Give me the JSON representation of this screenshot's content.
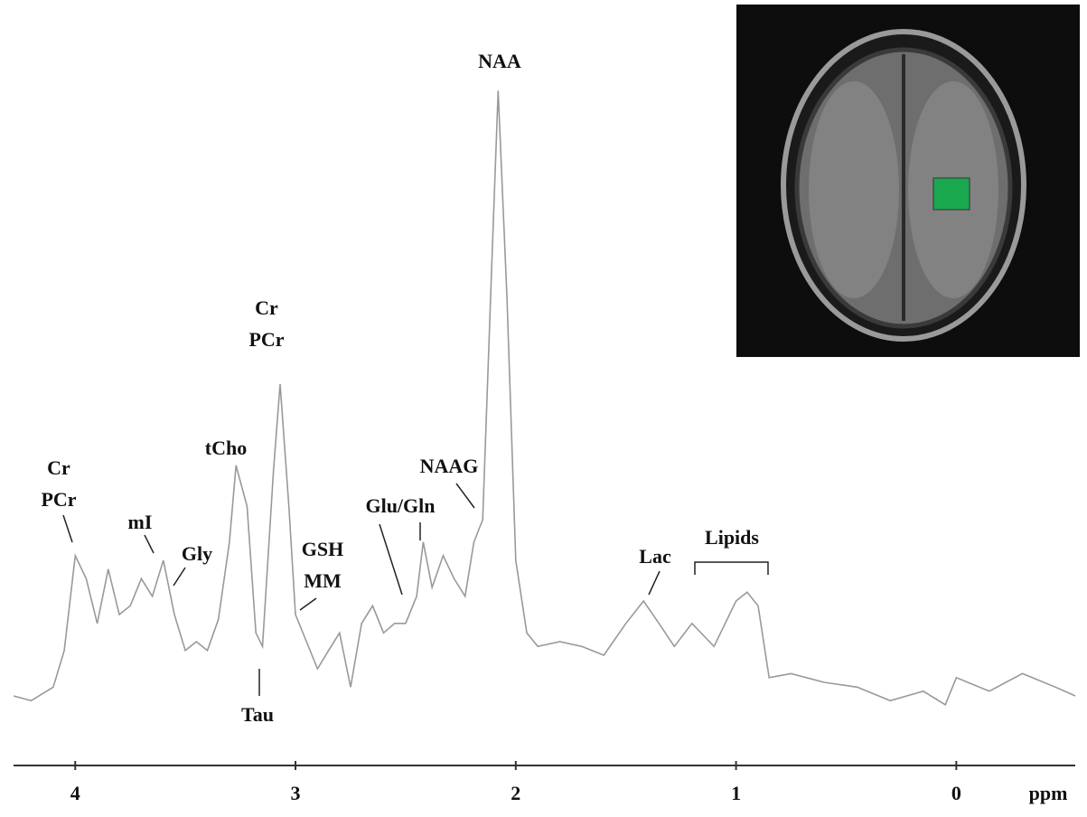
{
  "chart_data": {
    "type": "line",
    "x": [
      4.28,
      4.2,
      4.1,
      4.05,
      4.0,
      3.95,
      3.9,
      3.85,
      3.8,
      3.75,
      3.7,
      3.65,
      3.6,
      3.55,
      3.5,
      3.45,
      3.4,
      3.35,
      3.3,
      3.27,
      3.22,
      3.18,
      3.15,
      3.1,
      3.07,
      3.03,
      3.0,
      2.95,
      2.9,
      2.85,
      2.8,
      2.75,
      2.7,
      2.65,
      2.6,
      2.55,
      2.5,
      2.45,
      2.42,
      2.38,
      2.33,
      2.28,
      2.23,
      2.19,
      2.15,
      2.11,
      2.08,
      2.04,
      2.0,
      1.95,
      1.9,
      1.8,
      1.7,
      1.6,
      1.5,
      1.42,
      1.35,
      1.28,
      1.2,
      1.1,
      1.0,
      0.95,
      0.9,
      0.85,
      0.75,
      0.6,
      0.45,
      0.3,
      0.15,
      0.05,
      0.0,
      -0.15,
      -0.3,
      -0.45,
      -0.54
    ],
    "series": [
      {
        "color": "#999999",
        "values": [
          8,
          7.3,
          9.3,
          14.7,
          28.7,
          25.3,
          18.7,
          26.7,
          20,
          21.3,
          25.3,
          22.7,
          28,
          20,
          14.7,
          16,
          14.7,
          19.3,
          30.7,
          42,
          36,
          17.3,
          15.3,
          41.3,
          54,
          36,
          20,
          16,
          12,
          14.7,
          17.3,
          9.3,
          18.7,
          21.3,
          17.3,
          18.7,
          18.7,
          22.7,
          30.7,
          24,
          28.7,
          25.3,
          22.7,
          30.7,
          34,
          70.7,
          97.3,
          66.7,
          28,
          17.3,
          15.3,
          16,
          15.3,
          14,
          18.7,
          22,
          18.7,
          15.3,
          18.7,
          15.3,
          22,
          23.3,
          21.3,
          10.7,
          11.3,
          10,
          9.3,
          7.3,
          8.7,
          6.7,
          10.7,
          8.7,
          11.3,
          9.3,
          8
        ]
      }
    ],
    "xlim": [
      4.28,
      -0.54
    ],
    "xticks": [
      4,
      3,
      2,
      1,
      0
    ],
    "ylim": [
      0,
      100
    ],
    "x_label": "ppm",
    "annotations": [
      {
        "lines": [
          "Cr",
          "PCr"
        ]
      },
      {
        "lines": [
          "mI"
        ]
      },
      {
        "lines": [
          "Gly"
        ]
      },
      {
        "lines": [
          "tCho"
        ]
      },
      {
        "lines": [
          "Cr",
          "PCr"
        ]
      },
      {
        "lines": [
          "Tau"
        ]
      },
      {
        "lines": [
          "GSH",
          "MM"
        ]
      },
      {
        "lines": [
          "Glu/Gln"
        ]
      },
      {
        "lines": [
          "NAAG"
        ]
      },
      {
        "lines": [
          "NAA"
        ]
      },
      {
        "lines": [
          "Lac"
        ]
      },
      {
        "lines": [
          "Lipids"
        ]
      }
    ]
  }
}
